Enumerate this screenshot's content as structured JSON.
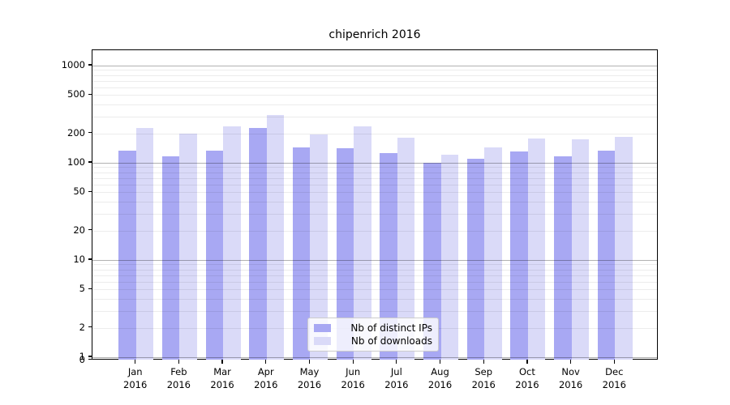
{
  "chart_data": {
    "type": "bar",
    "title": "chipenrich 2016",
    "categories": [
      "Jan",
      "Feb",
      "Mar",
      "Apr",
      "May",
      "Jun",
      "Jul",
      "Aug",
      "Sep",
      "Oct",
      "Nov",
      "Dec"
    ],
    "category_year": "2016",
    "series": [
      {
        "name": "Nb of distinct IPs",
        "color": "#a8a8f3",
        "values": [
          134,
          117,
          134,
          230,
          144,
          141,
          126,
          100,
          110,
          131,
          117,
          134
        ]
      },
      {
        "name": "Nb of downloads",
        "color": "#dadaf8",
        "values": [
          229,
          198,
          236,
          312,
          196,
          237,
          180,
          121,
          144,
          178,
          174,
          185
        ]
      }
    ],
    "yscale": "symlog",
    "y_tick_labels": [
      "0",
      "1",
      "2",
      "5",
      "10",
      "20",
      "50",
      "100",
      "200",
      "500",
      "1000"
    ],
    "ylim": [
      0,
      1400
    ],
    "grid": true,
    "legend_position": "lower center"
  }
}
